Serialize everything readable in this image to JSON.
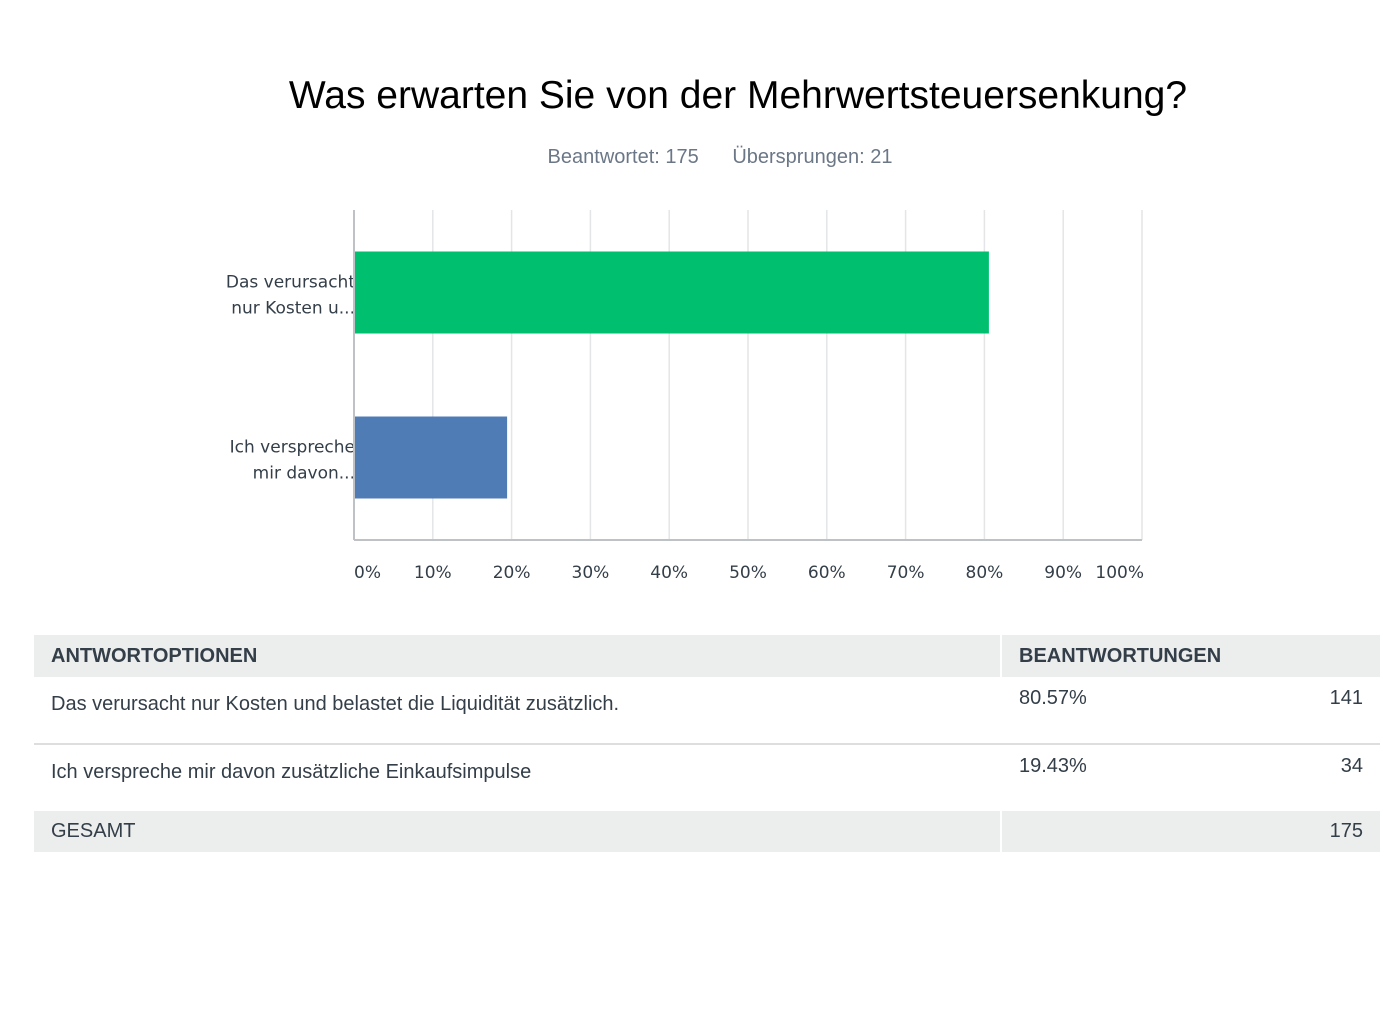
{
  "title": "Was erwarten Sie von der Mehrwertsteuersenkung?",
  "answered_label": "Beantwortet: 175",
  "skipped_label": "Übersprungen: 21",
  "chart_data": {
    "type": "bar",
    "orientation": "horizontal",
    "categories": [
      [
        "Das verursacht",
        "nur Kosten u..."
      ],
      [
        "Ich verspreche",
        "mir davon..."
      ]
    ],
    "values": [
      80.57,
      19.43
    ],
    "colors": [
      "#00bf6f",
      "#507cb6"
    ],
    "xlim": [
      0,
      100
    ],
    "xticks": [
      "0%",
      "10%",
      "20%",
      "30%",
      "40%",
      "50%",
      "60%",
      "70%",
      "80%",
      "90%",
      "100%"
    ],
    "grid": true
  },
  "table": {
    "headers": [
      "ANTWORTOPTIONEN",
      "BEANTWORTUNGEN"
    ],
    "rows": [
      {
        "option": "Das verursacht nur Kosten und belastet die Liquidität zusätzlich.",
        "percent": "80.57%",
        "count": "141"
      },
      {
        "option": "Ich verspreche mir davon zusätzliche Einkaufsimpulse",
        "percent": "19.43%",
        "count": "34"
      }
    ],
    "total_label": "GESAMT",
    "total_count": "175"
  }
}
